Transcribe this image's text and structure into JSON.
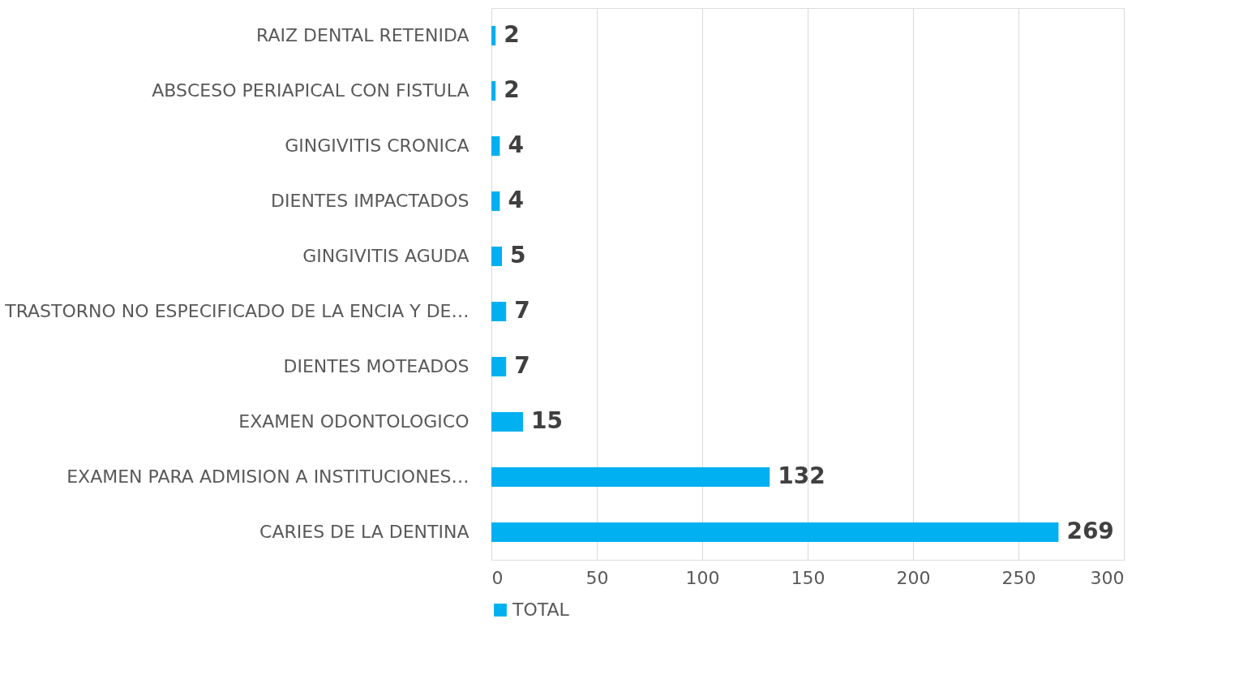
{
  "chart_data": {
    "type": "bar",
    "orientation": "horizontal",
    "categories": [
      "RAIZ DENTAL RETENIDA",
      "ABSCESO PERIAPICAL CON FISTULA",
      "GINGIVITIS CRONICA",
      "DIENTES IMPACTADOS",
      "GINGIVITIS AGUDA",
      "TRASTORNO NO ESPECIFICADO DE LA ENCIA Y DE…",
      "DIENTES MOTEADOS",
      "EXAMEN ODONTOLOGICO",
      "EXAMEN PARA ADMISION A INSTITUCIONES…",
      "CARIES DE LA DENTINA"
    ],
    "series": [
      {
        "name": "TOTAL",
        "color": "#00b0f0",
        "values": [
          2,
          2,
          4,
          4,
          5,
          7,
          7,
          15,
          132,
          269
        ]
      }
    ],
    "xlim": [
      0,
      300
    ],
    "xticks": [
      0,
      50,
      100,
      150,
      200,
      250,
      300
    ],
    "grid": "x",
    "legend": "bottom",
    "data_labels": true
  }
}
